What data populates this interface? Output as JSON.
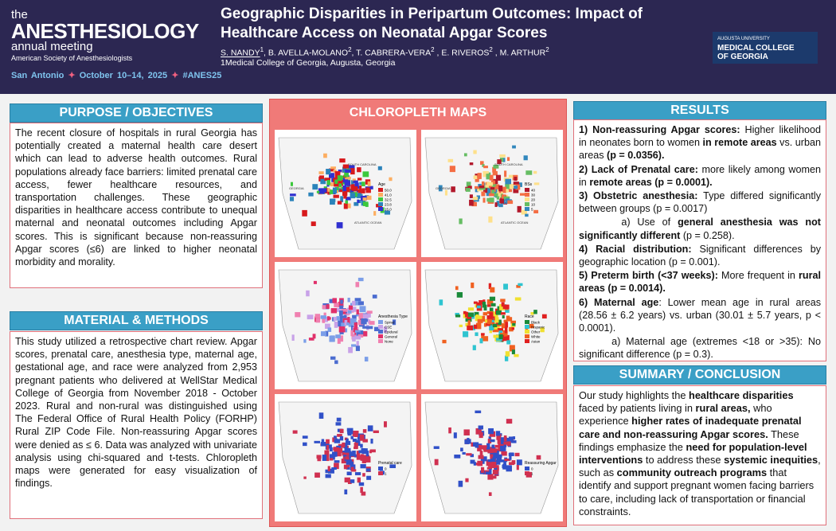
{
  "header": {
    "brand": {
      "the": "the",
      "name": "ANESTHESIOLOGY",
      "sub": "annual meeting",
      "society": "American Society of Anesthesiologists"
    },
    "event": [
      "San Antonio",
      "October 10–14, 2025",
      "#ANES25"
    ],
    "title": "Geographic Disparities in Peripartum Outcomes: Impact of Healthcare Access on Neonatal Apgar Scores",
    "authors": [
      {
        "name": "S. NANDY",
        "sup": "1"
      },
      {
        "name": ", B. AVELLA-MOLANO",
        "sup": "2"
      },
      {
        "name": ", T. CABRERA-VERA",
        "sup": "2"
      },
      {
        "name": " , E. RIVEROS",
        "sup": "2"
      },
      {
        "name": " , M. ARTHUR",
        "sup": "2"
      }
    ],
    "affiliation": "1Medical College of Georgia, Augusta, Georgia",
    "logo": [
      "AUGUSTA UNIVERSITY",
      "MEDICAL COLLEGE",
      "OF GEORGIA"
    ]
  },
  "purpose": {
    "heading": "PURPOSE / OBJECTIVES",
    "text": "The recent closure of hospitals in rural Georgia has potentially created a maternal health care desert which can lead to adverse health outcomes.  Rural populations already face barriers: limited prenatal care access, fewer healthcare resources, and transportation challenges.  These geographic disparities in healthcare access contribute to unequal maternal and neonatal outcomes including Apgar scores. This is significant because non-reassuring Apgar scores (≤6) are linked to higher neonatal morbidity and morality."
  },
  "methods": {
    "heading": "MATERIAL & METHODS",
    "text": "This study utilized a retrospective chart review. Apgar scores, prenatal care, anesthesia type, maternal age, gestational age, and race were analyzed from 2,953 pregnant patients who delivered at WellStar Medical College of Georgia from November 2018 - October 2023.  Rural and non-rural was distinguished using The Federal Office of Rural Health Policy (FORHP) Rural ZIP Code File.  Non-reassuring Apgar scores were denied as ≤ 6. Data was analyzed with univariate analysis using chi-squared and t-tests. Chloropleth maps were generated for easy visualization of findings."
  },
  "maps": {
    "heading": "CHLOROPLETH MAPS",
    "labels": [
      "SOUTH CAROLINA",
      "GEORGIA",
      "ATLANTIC OCEAN"
    ],
    "panels": [
      {
        "legend_title": "Age",
        "legend": [
          {
            "label": "50.0",
            "color": "#d7191c"
          },
          {
            "label": "41.0",
            "color": "#fdae61"
          },
          {
            "label": "32.5",
            "color": "#3cc83c"
          },
          {
            "label": "23.8",
            "color": "#2b83ba"
          },
          {
            "label": "15.0",
            "color": "#3030d0"
          }
        ]
      },
      {
        "legend_title": "BSs",
        "legend": [
          {
            "label": "40",
            "color": "#b2182b"
          },
          {
            "label": "30",
            "color": "#f46d43"
          },
          {
            "label": "20",
            "color": "#fee08b"
          },
          {
            "label": "10",
            "color": "#66bd63"
          },
          {
            "label": "5",
            "color": "#3288bd"
          }
        ]
      },
      {
        "legend_title": "Anesthesia Type",
        "legend": [
          {
            "label": "Spinal",
            "color": "#7b9ee8"
          },
          {
            "label": "CSE",
            "color": "#c8a2e8"
          },
          {
            "label": "Epidural",
            "color": "#4b6cd0"
          },
          {
            "label": "General",
            "color": "#e0306a"
          },
          {
            "label": "None",
            "color": "#f080b0"
          }
        ]
      },
      {
        "legend_title": "Race",
        "legend": [
          {
            "label": "Black",
            "color": "#1a8a3a"
          },
          {
            "label": "Hispanic",
            "color": "#2ec4d0"
          },
          {
            "label": "Other",
            "color": "#f0e030"
          },
          {
            "label": "White",
            "color": "#f06020"
          },
          {
            "label": "Asian",
            "color": "#e02020"
          }
        ]
      },
      {
        "legend_title": "Prenatal care",
        "legend": [
          {
            "label": "0",
            "color": "#3050c8"
          },
          {
            "label": "1",
            "color": "#d03050"
          }
        ]
      },
      {
        "legend_title": "Reassuring Apgar",
        "legend": [
          {
            "label": "0",
            "color": "#3050c8"
          },
          {
            "label": "1",
            "color": "#d03050"
          }
        ]
      }
    ]
  },
  "results": {
    "heading": "RESULTS",
    "items": [
      [
        {
          "t": "1) Non-reassuring Apgar scores:",
          "b": true
        },
        {
          "t": " Higher likelihood in neonates born to women "
        },
        {
          "t": "in remote areas",
          "b": true
        },
        {
          "t": " vs. urban areas "
        },
        {
          "t": "(p = 0.0356).",
          "b": true
        }
      ],
      [
        {
          "t": "2) Lack of Prenatal care:",
          "b": true
        },
        {
          "t": " more likely among women in "
        },
        {
          "t": "remote areas",
          "b": true
        },
        {
          "t": " "
        },
        {
          "t": "(p = 0.0001).",
          "b": true
        }
      ],
      [
        {
          "t": "3) Obstetric anesthesia:",
          "b": true
        },
        {
          "t": " Type differed significantly between groups (p = 0.0017)"
        }
      ],
      [
        {
          "t": "      a) Use of "
        },
        {
          "t": "general anesthesia was not significantly different",
          "b": true
        },
        {
          "t": " (p = 0.258)."
        }
      ],
      [
        {
          "t": "4) Racial distribution:",
          "b": true
        },
        {
          "t": " Significant differences by geographic location (p = 0.001)."
        }
      ],
      [
        {
          "t": "5) Preterm birth (<37 weeks):",
          "b": true
        },
        {
          "t": " More frequent in "
        },
        {
          "t": "rural areas (p = 0.0014).",
          "b": true
        }
      ],
      [
        {
          "t": "6) Maternal age",
          "b": true
        },
        {
          "t": ": Lower mean age in rural areas (28.56 ± 6.2 years) vs. urban (30.01 ± 5.7 years, p < 0.0001)."
        }
      ],
      [
        {
          "t": "      a) Maternal age (extremes <18 or >35): No significant difference (p = 0.3)."
        }
      ]
    ]
  },
  "summary": {
    "heading": "SUMMARY / CONCLUSION",
    "text": [
      {
        "t": "Our study highlights the "
      },
      {
        "t": "healthcare disparities",
        "b": true
      },
      {
        "t": " faced by patients living in "
      },
      {
        "t": "rural areas,",
        "b": true
      },
      {
        "t": " who experience "
      },
      {
        "t": "higher rates of inadequate prenatal care and non-reassuring Apgar scores.",
        "b": true
      },
      {
        "t": " These findings emphasize the "
      },
      {
        "t": "need for population-level interventions",
        "b": true
      },
      {
        "t": " to address these "
      },
      {
        "t": "systemic inequities",
        "b": true
      },
      {
        "t": ", such as "
      },
      {
        "t": "community outreach programs",
        "b": true
      },
      {
        "t": " that identify and support pregnant women facing barriers to care, including lack of transportation or financial constraints."
      }
    ]
  }
}
